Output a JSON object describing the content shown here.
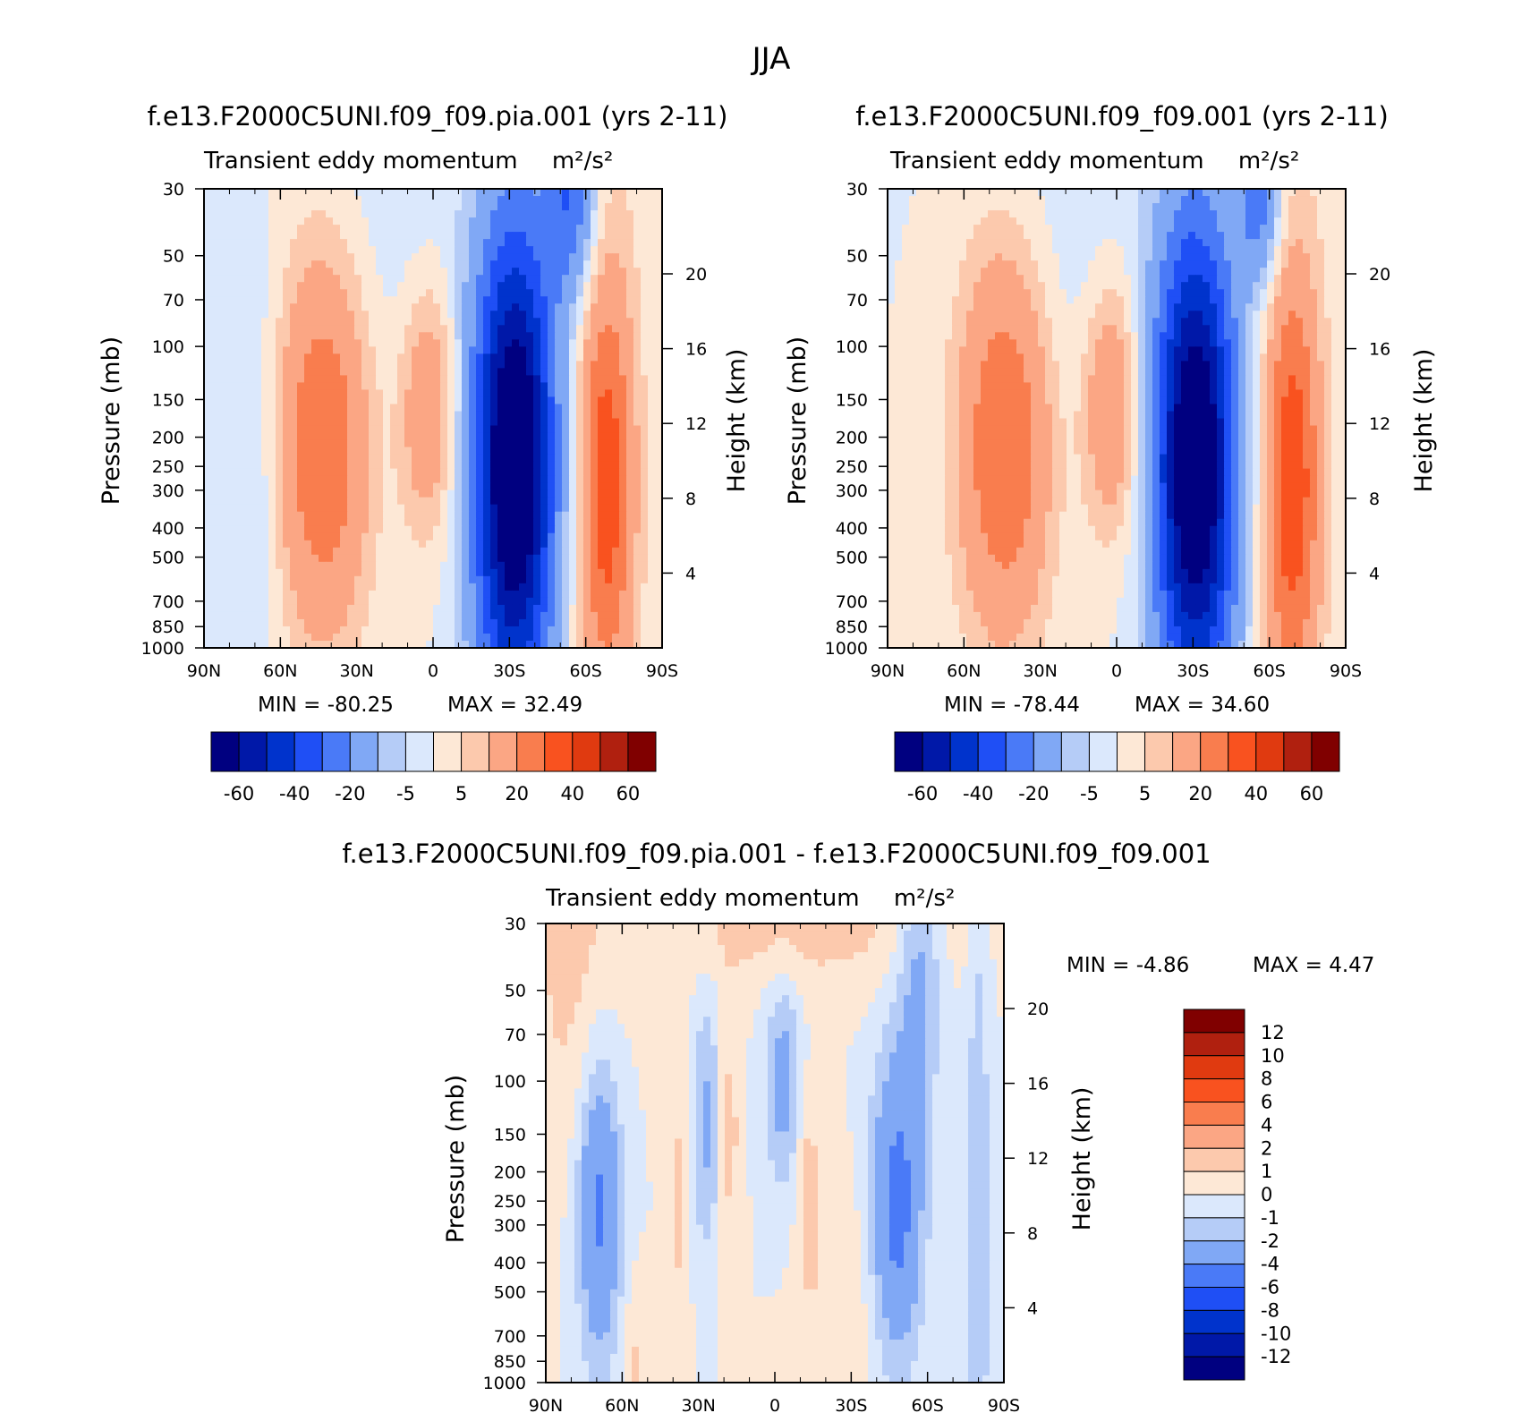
{
  "figure": {
    "season": "JJA",
    "colors": {
      "diverging_colormap": [
        "#000080",
        "#0018a8",
        "#0033cc",
        "#1f4ff5",
        "#4a7af7",
        "#80a8f5",
        "#b5ccf7",
        "#dbe8fc",
        "#fde8d6",
        "#fcc9ad",
        "#fba684",
        "#f97d4e",
        "#f9521f",
        "#e03a10",
        "#b0200f",
        "#800000"
      ]
    }
  },
  "chart_data": [
    {
      "type": "heatmap",
      "id": "panel-left",
      "title": "f.e13.F2000C5UNI.f09_f09.pia.001 (yrs 2-11)",
      "subtitle": "Transient eddy momentum",
      "units": "m²/s²",
      "xlabel": "",
      "ylabel": "Pressure (mb)",
      "y2label": "Height (km)",
      "x_ticks": [
        "90N",
        "60N",
        "30N",
        "0",
        "30S",
        "60S",
        "90S"
      ],
      "x_values": [
        90,
        60,
        30,
        0,
        -30,
        -60,
        -90
      ],
      "y_ticks": [
        30,
        50,
        70,
        100,
        150,
        200,
        250,
        300,
        400,
        500,
        700,
        850,
        1000
      ],
      "y_log": true,
      "y_range": [
        1000,
        30
      ],
      "y2_ticks": [
        4,
        8,
        12,
        16,
        20
      ],
      "min_label": "MIN = -80.25",
      "max_label": "MAX = 32.49",
      "min": -80.25,
      "max": 32.49,
      "levels": [
        -70,
        -60,
        -50,
        -40,
        -30,
        -20,
        -10,
        -5,
        0,
        5,
        10,
        20,
        30,
        40,
        50,
        60,
        70
      ],
      "colorbar_labels": [
        "-60",
        "-40",
        "-20",
        "-5",
        "5",
        "20",
        "40",
        "60"
      ],
      "features": [
        {
          "lat": -32,
          "p": 250,
          "value": -80,
          "dlat": 11,
          "dlogp": 0.55
        },
        {
          "lat": -54,
          "p": 30,
          "value": -30,
          "dlat": 7,
          "dlogp": 0.25
        },
        {
          "lat": 43,
          "p": 210,
          "value": 30,
          "dlat": 13,
          "dlogp": 0.45
        },
        {
          "lat": 2,
          "p": 160,
          "value": 20,
          "dlat": 8,
          "dlogp": 0.3
        },
        {
          "lat": -68,
          "p": 290,
          "value": 32,
          "dlat": 7,
          "dlogp": 0.45
        },
        {
          "lat": -68,
          "p": 200,
          "value": 6,
          "dlat": 12,
          "dlogp": 1.0
        },
        {
          "lat": 68,
          "p": 250,
          "value": -6,
          "dlat": 7,
          "dlogp": 0.5
        },
        {
          "lat": 15,
          "p": 50,
          "value": -4,
          "dlat": 25,
          "dlogp": 0.6
        }
      ]
    },
    {
      "type": "heatmap",
      "id": "panel-right",
      "title": "f.e13.F2000C5UNI.f09_f09.001 (yrs 2-11)",
      "subtitle": "Transient eddy momentum",
      "units": "m²/s²",
      "xlabel": "",
      "ylabel": "Pressure (mb)",
      "y2label": "Height (km)",
      "x_ticks": [
        "90N",
        "60N",
        "30N",
        "0",
        "30S",
        "60S",
        "90S"
      ],
      "x_values": [
        90,
        60,
        30,
        0,
        -30,
        -60,
        -90
      ],
      "y_ticks": [
        30,
        50,
        70,
        100,
        150,
        200,
        250,
        300,
        400,
        500,
        700,
        850,
        1000
      ],
      "y_log": true,
      "y_range": [
        1000,
        30
      ],
      "y2_ticks": [
        4,
        8,
        12,
        16,
        20
      ],
      "min_label": "MIN = -78.44",
      "max_label": "MAX = 34.60",
      "min": -78.44,
      "max": 34.6,
      "levels": [
        -70,
        -60,
        -50,
        -40,
        -30,
        -20,
        -10,
        -5,
        0,
        5,
        10,
        20,
        30,
        40,
        50,
        60,
        70
      ],
      "colorbar_labels": [
        "-60",
        "-40",
        "-20",
        "-5",
        "5",
        "20",
        "40",
        "60"
      ],
      "features": [
        {
          "lat": -31,
          "p": 250,
          "value": -78,
          "dlat": 11,
          "dlogp": 0.55
        },
        {
          "lat": -56,
          "p": 30,
          "value": -28,
          "dlat": 6,
          "dlogp": 0.22
        },
        {
          "lat": 44,
          "p": 210,
          "value": 31,
          "dlat": 13,
          "dlogp": 0.45
        },
        {
          "lat": 2,
          "p": 160,
          "value": 21,
          "dlat": 8,
          "dlogp": 0.3
        },
        {
          "lat": -69,
          "p": 290,
          "value": 34,
          "dlat": 7,
          "dlogp": 0.45
        },
        {
          "lat": -69,
          "p": 200,
          "value": 6,
          "dlat": 12,
          "dlogp": 1.0
        },
        {
          "lat": 15,
          "p": 50,
          "value": -4,
          "dlat": 25,
          "dlogp": 0.6
        }
      ]
    },
    {
      "type": "heatmap",
      "id": "panel-diff",
      "title": "f.e13.F2000C5UNI.f09_f09.pia.001 - f.e13.F2000C5UNI.f09_f09.001",
      "subtitle": "Transient eddy momentum",
      "units": "m²/s²",
      "xlabel": "",
      "ylabel": "Pressure (mb)",
      "y2label": "Height (km)",
      "x_ticks": [
        "90N",
        "60N",
        "30N",
        "0",
        "30S",
        "60S",
        "90S"
      ],
      "x_values": [
        90,
        60,
        30,
        0,
        -30,
        -60,
        -90
      ],
      "y_ticks": [
        30,
        50,
        70,
        100,
        150,
        200,
        250,
        300,
        400,
        500,
        700,
        850,
        1000
      ],
      "y_log": true,
      "y_range": [
        1000,
        30
      ],
      "y2_ticks": [
        4,
        8,
        12,
        16,
        20
      ],
      "min_label": "MIN = -4.86",
      "max_label": "MAX = 4.47",
      "min": -4.86,
      "max": 4.47,
      "levels": [
        -14,
        -12,
        -10,
        -8,
        -6,
        -4,
        -2,
        -1,
        0,
        1,
        2,
        4,
        6,
        8,
        10,
        12,
        14
      ],
      "colorbar_labels": [
        "12",
        "10",
        "8",
        "6",
        "4",
        "2",
        "1",
        "0",
        "-1",
        "-2",
        "-4",
        "-6",
        "-8",
        "-10",
        "-12"
      ],
      "features": [
        {
          "lat": 69,
          "p": 260,
          "value": -4.5,
          "dlat": 6,
          "dlogp": 0.35
        },
        {
          "lat": -48,
          "p": 260,
          "value": -4.8,
          "dlat": 7,
          "dlogp": 0.35
        },
        {
          "lat": -57,
          "p": 40,
          "value": -2.5,
          "dlat": 6,
          "dlogp": 0.35
        },
        {
          "lat": 27,
          "p": 140,
          "value": -2.3,
          "dlat": 4,
          "dlogp": 0.3
        },
        {
          "lat": -3,
          "p": 100,
          "value": -2.6,
          "dlat": 5,
          "dlogp": 0.25
        },
        {
          "lat": -10,
          "p": 30,
          "value": 1.5,
          "dlat": 40,
          "dlogp": 0.15
        },
        {
          "lat": 80,
          "p": 40,
          "value": 1.3,
          "dlat": 12,
          "dlogp": 0.5
        },
        {
          "lat": 18,
          "p": 150,
          "value": 1.5,
          "dlat": 3,
          "dlogp": 0.3
        },
        {
          "lat": -13,
          "p": 220,
          "value": 1.5,
          "dlat": 3,
          "dlogp": 0.25
        },
        {
          "lat": 38,
          "p": 250,
          "value": 1.2,
          "dlat": 3,
          "dlogp": 0.4
        },
        {
          "lat": 55,
          "p": 900,
          "value": 1.2,
          "dlat": 3,
          "dlogp": 0.2
        },
        {
          "lat": -25,
          "p": 600,
          "value": 1.0,
          "dlat": 10,
          "dlogp": 0.3
        },
        {
          "lat": -80,
          "p": 300,
          "value": -2.0,
          "dlat": 3,
          "dlogp": 0.8
        }
      ]
    }
  ]
}
